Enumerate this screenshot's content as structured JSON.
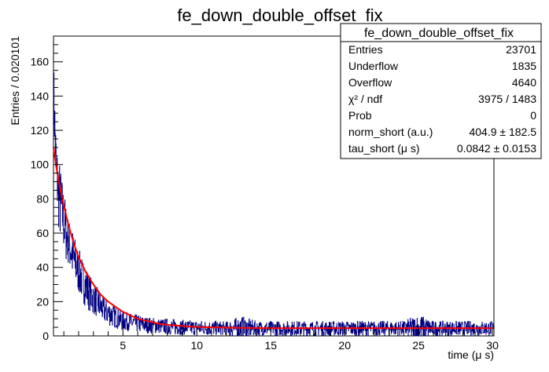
{
  "chart_data": {
    "type": "line",
    "title": "fe_down_double_offset_fix",
    "xlabel": "time (μ s)",
    "ylabel": "Entries / 0.020101",
    "xlim": [
      0.3,
      30.1
    ],
    "ylim": [
      0,
      175
    ],
    "x_ticks": [
      5,
      10,
      15,
      20,
      25,
      30
    ],
    "y_ticks": [
      0,
      20,
      40,
      60,
      80,
      100,
      120,
      140,
      160
    ],
    "grid": false,
    "series": [
      {
        "kind": "histogram",
        "color": "#000080",
        "x": [
          0.3,
          0.5,
          0.7,
          0.9,
          1.1,
          1.3,
          1.5,
          1.7,
          1.9,
          2.1,
          2.3,
          2.5,
          2.7,
          2.9,
          3.1,
          3.3,
          3.5,
          3.7,
          3.9,
          4.1,
          4.3,
          4.5,
          4.7,
          4.9,
          5.2,
          5.5,
          5.8,
          6.1,
          6.5,
          7,
          7.5,
          8,
          8.5,
          9,
          10,
          11,
          12,
          13,
          14,
          15,
          16,
          17,
          18,
          19,
          20,
          21,
          22,
          23,
          24,
          25,
          26,
          27,
          28,
          29,
          30
        ],
        "y": [
          145,
          95,
          80,
          72,
          62,
          55,
          50,
          44,
          40,
          36,
          32,
          29,
          26,
          23,
          21,
          19,
          17,
          15,
          14,
          13,
          12,
          11,
          10,
          9,
          8.5,
          8,
          7.5,
          7,
          6.5,
          6,
          5.8,
          5.5,
          5.2,
          5,
          4.8,
          4.6,
          4.5,
          4.5,
          4.4,
          4.4,
          4.4,
          4.4,
          4.4,
          4.4,
          4.4,
          4.4,
          4.4,
          4.4,
          4.4,
          4.4,
          4.4,
          4.4,
          4.4,
          4.4,
          4.4
        ],
        "y_high": [
          150,
          120,
          110,
          95,
          85,
          70,
          68,
          65,
          57,
          53,
          48,
          45,
          40,
          35,
          32,
          30,
          27,
          25,
          23,
          22,
          20,
          18,
          17,
          16,
          15,
          14,
          13,
          13,
          12,
          12,
          11,
          11,
          11,
          10,
          10,
          10,
          9,
          17,
          10,
          10,
          10,
          10,
          10,
          10,
          10,
          10,
          10,
          10,
          10,
          20,
          10,
          10,
          10,
          10,
          10
        ],
        "y_low": [
          105,
          75,
          55,
          50,
          42,
          38,
          32,
          28,
          26,
          22,
          19,
          16,
          14,
          12,
          11,
          9,
          8,
          7,
          6,
          5,
          4,
          3,
          3,
          2,
          2,
          2,
          1,
          1,
          1,
          1,
          1,
          0,
          0,
          0,
          0,
          0,
          0,
          0,
          0,
          0,
          0,
          0,
          0,
          0,
          0,
          0,
          0,
          0,
          0,
          0,
          0,
          0,
          0,
          0,
          0
        ]
      },
      {
        "kind": "fit",
        "color": "#ff0000",
        "x": [
          0.3,
          0.5,
          0.75,
          1,
          1.25,
          1.5,
          1.75,
          2,
          2.5,
          3,
          3.5,
          4,
          4.5,
          5,
          5.5,
          6,
          6.5,
          7,
          7.5,
          8,
          9,
          10,
          12,
          14,
          16,
          18,
          20,
          22,
          24,
          26,
          28,
          30
        ],
        "y": [
          110,
          98,
          86,
          76,
          67,
          59,
          52,
          46,
          37,
          30,
          24,
          20,
          17,
          14,
          12,
          10,
          9,
          8,
          7,
          6.5,
          5.8,
          5.2,
          4.8,
          4.6,
          4.5,
          4.5,
          4.5,
          4.5,
          4.5,
          4.5,
          4.5,
          4.5
        ]
      }
    ],
    "stats_box": {
      "title": "fe_down_double_offset_fix",
      "rows": [
        {
          "label": "Entries",
          "value": "23701"
        },
        {
          "label": "Underflow",
          "value": "1835"
        },
        {
          "label": "Overflow",
          "value": "4640"
        },
        {
          "label": "χ² / ndf",
          "value": "3975 / 1483"
        },
        {
          "label": "Prob",
          "value": "0"
        },
        {
          "label": "norm_short (a.u.)",
          "value": "404.9 ± 182.5"
        },
        {
          "label": "tau_short (μ s)",
          "value": "0.0842 ± 0.0153"
        }
      ]
    }
  }
}
